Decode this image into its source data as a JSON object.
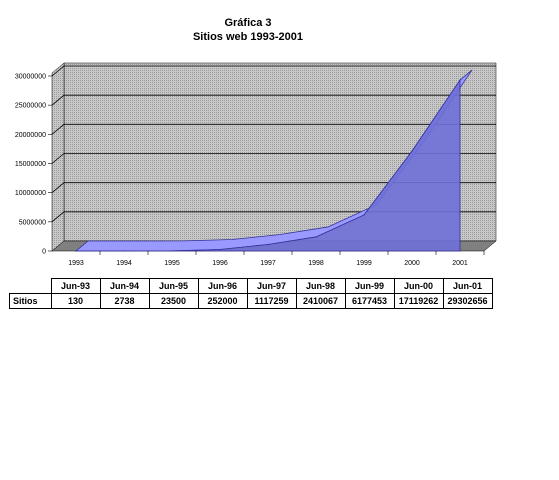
{
  "title": "Gráfica 3",
  "subtitle": "Sitios web 1993-2001",
  "chart_data": {
    "type": "area",
    "three_d": true,
    "categories": [
      "1993",
      "1994",
      "1995",
      "1996",
      "1997",
      "1998",
      "1999",
      "2000",
      "2001"
    ],
    "series": [
      {
        "values": [
          130,
          2738,
          23500,
          252000,
          1117259,
          2410067,
          6177453,
          17119262,
          29302656
        ]
      }
    ],
    "ylim": [
      0,
      30000000
    ],
    "yticks": [
      "0",
      "5000000",
      "10000000",
      "15000000",
      "20000000",
      "25000000",
      "30000000"
    ],
    "grid": true,
    "colors": {
      "area": "#9999ff",
      "area_edge": "#333399",
      "wall": "#c0c0c0",
      "floor": "#808080"
    }
  },
  "table": {
    "headers": [
      "Jun-93",
      "Jun-94",
      "Jun-95",
      "Jun-96",
      "Jun-97",
      "Jun-98",
      "Jun-99",
      "Jun-00",
      "Jun-01"
    ],
    "row_label": "Sitios",
    "values": [
      "130",
      "2738",
      "23500",
      "252000",
      "1117259",
      "2410067",
      "6177453",
      "17119262",
      "29302656"
    ]
  }
}
